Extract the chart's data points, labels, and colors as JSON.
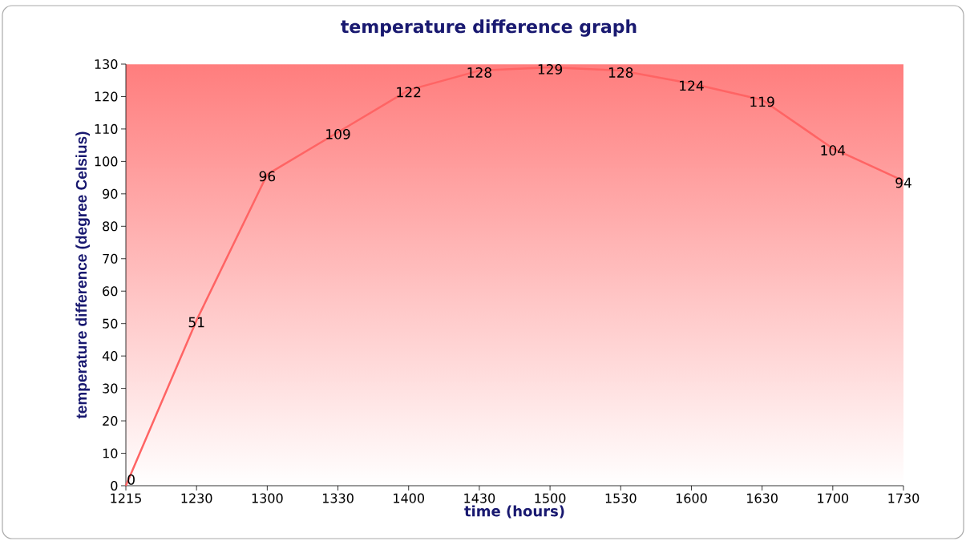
{
  "chart_data": {
    "type": "line",
    "title": "temperature difference graph",
    "xlabel": "time (hours)",
    "ylabel": "temperature difference (degree Celsius)",
    "categories": [
      "1215",
      "1230",
      "1300",
      "1330",
      "1400",
      "1430",
      "1500",
      "1530",
      "1600",
      "1630",
      "1700",
      "1730"
    ],
    "series": [
      {
        "color": "#ff6464",
        "values": [
          0,
          51,
          96,
          109,
          122,
          128,
          129,
          128,
          124,
          119,
          104,
          94
        ]
      }
    ],
    "ylim": [
      0,
      130
    ],
    "yticks": [
      0,
      10,
      20,
      30,
      40,
      50,
      60,
      70,
      80,
      90,
      100,
      110,
      120,
      130
    ],
    "data_labels": true,
    "grid": false,
    "marker": "none",
    "line_style": "solid"
  }
}
